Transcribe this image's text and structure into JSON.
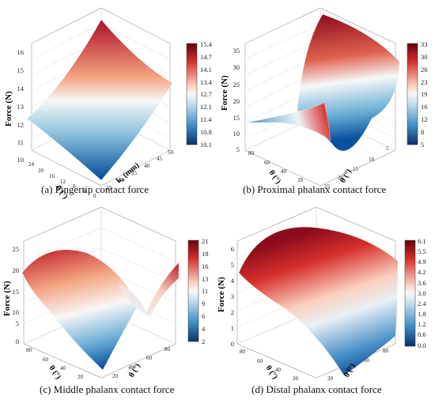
{
  "chart_data": [
    {
      "type": "surface",
      "caption": "(a) Fingertip contact force",
      "zlabel": "Force (N)",
      "xlabel": "θ (°)",
      "ylabel": "k₁ (mm)",
      "zlim": [
        10,
        16
      ],
      "zticks": [
        "10",
        "11",
        "12",
        "13",
        "14",
        "15",
        "16"
      ],
      "xticks": [
        "0",
        "4",
        "8",
        "12",
        "16",
        "20",
        "24"
      ],
      "yticks": [
        "25",
        "30",
        "35",
        "40",
        "45",
        "50"
      ],
      "colorbar_ticks": [
        "15.4",
        "14.7",
        "14.1",
        "13.4",
        "12.7",
        "12.1",
        "11.4",
        "10.8",
        "10.1"
      ],
      "colorbar_range": [
        10.1,
        15.4
      ],
      "grid": true
    },
    {
      "type": "surface",
      "caption": "(b) Proximal phalanx contact force",
      "zlabel": "Force (N)",
      "xlabel": "θ (°)",
      "ylabel": "θ (°)",
      "zlim": [
        5,
        35
      ],
      "zticks": [
        "5",
        "10",
        "15",
        "20",
        "25",
        "30",
        "35"
      ],
      "xticks": [
        "80",
        "60",
        "40",
        "20"
      ],
      "yticks": [
        "5",
        "10",
        "15",
        "20",
        "25"
      ],
      "colorbar_ticks": [
        "33",
        "30",
        "26",
        "23",
        "19",
        "16",
        "12",
        "8",
        "5"
      ],
      "colorbar_range": [
        5,
        33
      ],
      "grid": true
    },
    {
      "type": "surface",
      "caption": "(c) Middle phalanx contact force",
      "zlabel": "Force (N)",
      "xlabel": "θ (°)",
      "ylabel": "θ (°)",
      "zlim": [
        0,
        25
      ],
      "zticks": [
        "0",
        "5",
        "10",
        "15",
        "20",
        "25"
      ],
      "xticks": [
        "80",
        "60",
        "40",
        "20"
      ],
      "yticks": [
        "20",
        "40",
        "60",
        "80"
      ],
      "colorbar_ticks": [
        "21",
        "18",
        "16",
        "13",
        "11",
        "9",
        "6",
        "4",
        "2"
      ],
      "colorbar_range": [
        2,
        21
      ],
      "grid": true
    },
    {
      "type": "surface",
      "caption": "(d) Distal phalanx contact force",
      "zlabel": "Force (N)",
      "xlabel": "θ (°)",
      "ylabel": "θ (°)",
      "zlim": [
        0,
        6
      ],
      "zticks": [
        "0",
        "1",
        "2",
        "3",
        "4",
        "5",
        "6"
      ],
      "xticks": [
        "80",
        "60",
        "40",
        "20"
      ],
      "yticks": [
        "20",
        "40",
        "60",
        "80"
      ],
      "colorbar_ticks": [
        "6.1",
        "5.5",
        "4.9",
        "4.2",
        "3.6",
        "3.0",
        "2.4",
        "1.8",
        "1.2",
        "0.6",
        "0.0"
      ],
      "colorbar_range": [
        0.0,
        6.1
      ],
      "grid": true
    }
  ],
  "colors": {
    "high": "#b2182b",
    "mid": "#f7f7f7",
    "low": "#2166ac"
  }
}
